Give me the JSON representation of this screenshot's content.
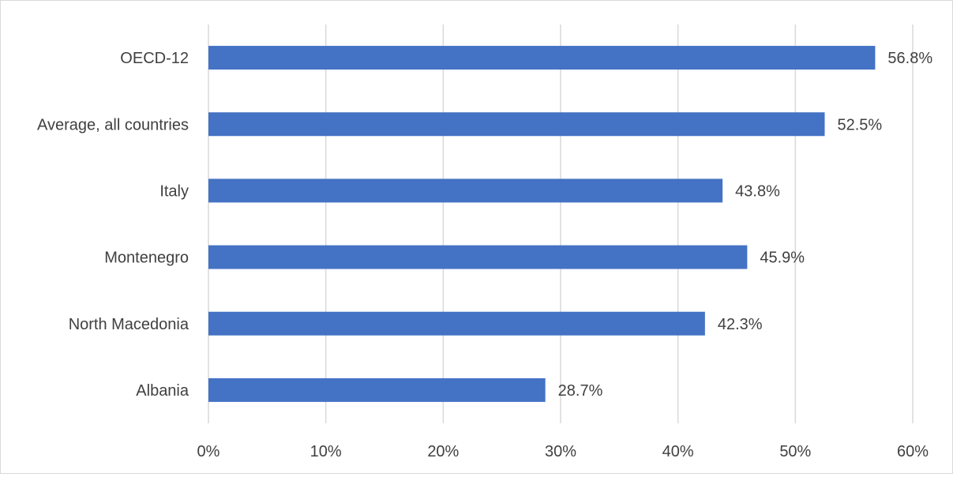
{
  "chart_data": {
    "type": "bar",
    "orientation": "horizontal",
    "categories": [
      "OECD-12",
      "Average, all countries",
      "Italy",
      "Montenegro",
      "North Macedonia",
      "Albania"
    ],
    "values": [
      56.8,
      52.5,
      43.8,
      45.9,
      42.3,
      28.7
    ],
    "data_labels": [
      "56.8%",
      "52.5%",
      "43.8%",
      "45.9%",
      "42.3%",
      "28.7%"
    ],
    "xticks": [
      "0%",
      "10%",
      "20%",
      "30%",
      "40%",
      "50%",
      "60%"
    ],
    "xlim": [
      0,
      60
    ],
    "grid": true,
    "legend": "none",
    "bar_color": "#4472C4",
    "grid_color": "#d9d9d9"
  }
}
